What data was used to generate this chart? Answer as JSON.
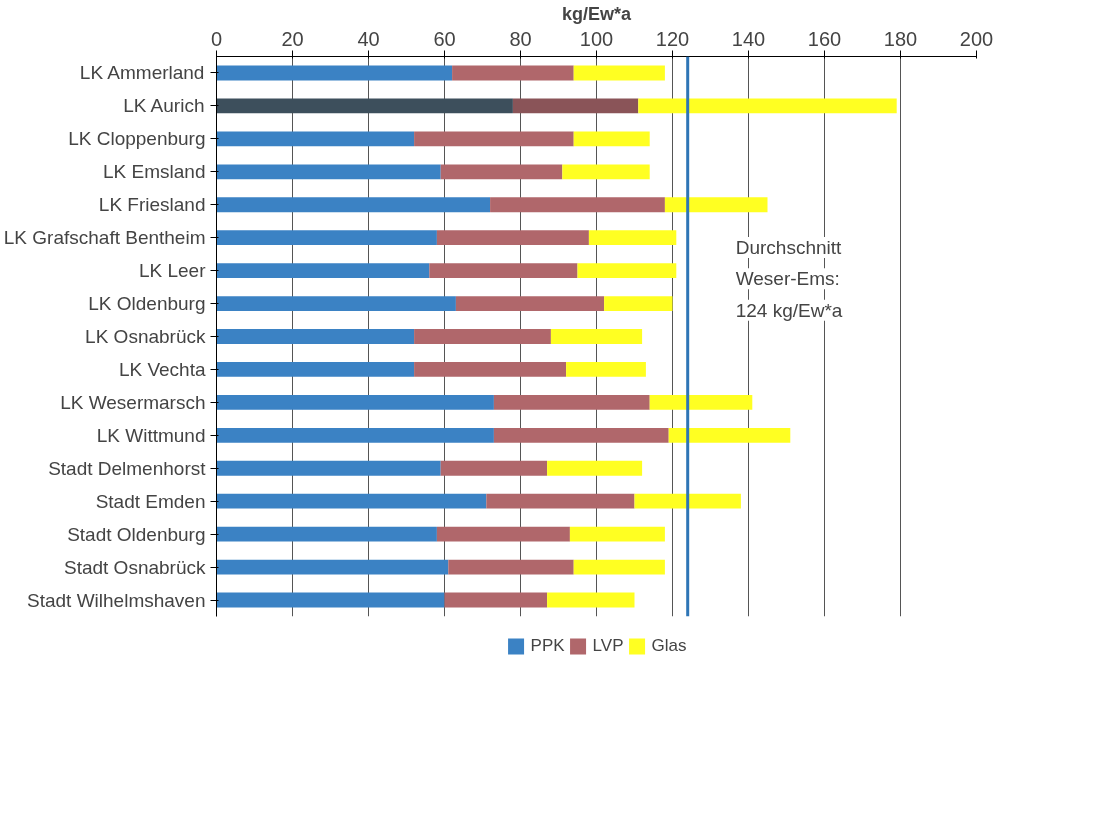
{
  "chart_data": {
    "type": "bar",
    "orientation": "horizontal",
    "stacked": true,
    "xlabel": "kg/Ew*a",
    "categories": [
      "LK Ammerland",
      "LK Aurich",
      "LK Cloppenburg",
      "LK Emsland",
      "LK Friesland",
      "LK Grafschaft Bentheim",
      "LK Leer",
      "LK Oldenburg",
      "LK Osnabrück",
      "LK Vechta",
      "LK Wesermarsch",
      "LK Wittmund",
      "Stadt Delmenhorst",
      "Stadt Emden",
      "Stadt Oldenburg",
      "Stadt Osnabrück",
      "Stadt Wilhelmshaven"
    ],
    "series": [
      {
        "name": "PPK",
        "color": "#3b82c4",
        "colors": [
          "#3b82c4",
          "#3d4f5c",
          "#3b82c4",
          "#3b82c4",
          "#3b82c4",
          "#3b82c4",
          "#3b82c4",
          "#3b82c4",
          "#3b82c4",
          "#3b82c4",
          "#3b82c4",
          "#3b82c4",
          "#3b82c4",
          "#3b82c4",
          "#3b82c4",
          "#3b82c4",
          "#3b82c4"
        ],
        "values": [
          62,
          78,
          52,
          59,
          72,
          58,
          56,
          63,
          52,
          52,
          73,
          73,
          59,
          71,
          58,
          61,
          60
        ]
      },
      {
        "name": "LVP",
        "color": "#b0676b",
        "colors": [
          "#b0676b",
          "#8a5458",
          "#b0676b",
          "#b0676b",
          "#b0676b",
          "#b0676b",
          "#b0676b",
          "#b0676b",
          "#b0676b",
          "#b0676b",
          "#b0676b",
          "#b0676b",
          "#b0676b",
          "#b0676b",
          "#b0676b",
          "#b0676b",
          "#b0676b"
        ],
        "values": [
          32,
          33,
          42,
          32,
          46,
          40,
          39,
          39,
          36,
          40,
          41,
          46,
          28,
          39,
          35,
          33,
          27
        ]
      },
      {
        "name": "Glas",
        "color": "#ffff22",
        "values": [
          24,
          68,
          20,
          23,
          27,
          23,
          26,
          18,
          24,
          21,
          27,
          32,
          25,
          28,
          25,
          24,
          23
        ]
      }
    ],
    "xlim": [
      0,
      200
    ],
    "xticks": [
      0,
      20,
      40,
      60,
      80,
      100,
      120,
      140,
      160,
      180,
      200
    ],
    "ref_lines": [
      {
        "axis": "x",
        "value": 124,
        "label": "Durchschnitt Weser-Ems: 124 kg/Ew*a",
        "color": "#2e75b6"
      }
    ],
    "grid": "x",
    "legend": "bottom"
  }
}
